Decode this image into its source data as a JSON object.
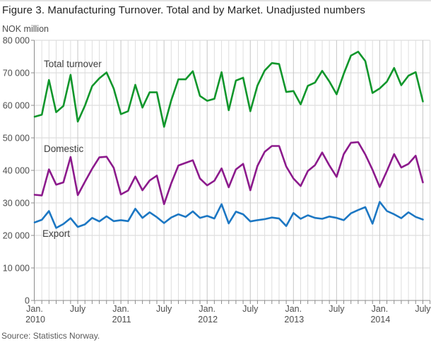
{
  "header": {
    "title": "Figure 3. Manufacturing Turnover. Total and by Market. Unadjusted numbers"
  },
  "footer": {
    "source": "Source: Statistics Norway."
  },
  "chart_data": {
    "type": "line",
    "title": "Figure 3. Manufacturing Turnover. Total and by Market. Unadjusted numbers",
    "ylabel": "NOK million",
    "xlabel": "",
    "ylim": [
      0,
      80000
    ],
    "ytick_step": 10000,
    "grid": true,
    "legend_position": "inline-labels",
    "x": [
      "2010-01",
      "2010-02",
      "2010-03",
      "2010-04",
      "2010-05",
      "2010-06",
      "2010-07",
      "2010-08",
      "2010-09",
      "2010-10",
      "2010-11",
      "2010-12",
      "2011-01",
      "2011-02",
      "2011-03",
      "2011-04",
      "2011-05",
      "2011-06",
      "2011-07",
      "2011-08",
      "2011-09",
      "2011-10",
      "2011-11",
      "2011-12",
      "2012-01",
      "2012-02",
      "2012-03",
      "2012-04",
      "2012-05",
      "2012-06",
      "2012-07",
      "2012-08",
      "2012-09",
      "2012-10",
      "2012-11",
      "2012-12",
      "2013-01",
      "2013-02",
      "2013-03",
      "2013-04",
      "2013-05",
      "2013-06",
      "2013-07",
      "2013-08",
      "2013-09",
      "2013-10",
      "2013-11",
      "2013-12",
      "2014-01",
      "2014-02",
      "2014-03",
      "2014-04",
      "2014-05",
      "2014-06",
      "2014-07"
    ],
    "x_ticks": [
      {
        "i": 0,
        "top": "Jan.",
        "bottom": "2010"
      },
      {
        "i": 6,
        "top": "July",
        "bottom": ""
      },
      {
        "i": 12,
        "top": "Jan.",
        "bottom": "2011"
      },
      {
        "i": 18,
        "top": "July",
        "bottom": ""
      },
      {
        "i": 24,
        "top": "Jan.",
        "bottom": "2012"
      },
      {
        "i": 30,
        "top": "July",
        "bottom": ""
      },
      {
        "i": 36,
        "top": "Jan.",
        "bottom": "2013"
      },
      {
        "i": 42,
        "top": "July",
        "bottom": ""
      },
      {
        "i": 48,
        "top": "Jan.",
        "bottom": "2014"
      },
      {
        "i": 54,
        "top": "July",
        "bottom": ""
      }
    ],
    "series": [
      {
        "name": "Total turnover",
        "color": "#10962b",
        "label_pos": {
          "x": 62,
          "y": 93
        },
        "values": [
          56500,
          57100,
          67800,
          57900,
          59800,
          69400,
          55000,
          59900,
          65900,
          68300,
          70100,
          65200,
          57300,
          58200,
          66300,
          59300,
          64000,
          64000,
          53400,
          61500,
          68000,
          68000,
          70500,
          62900,
          61400,
          62000,
          70200,
          58500,
          67600,
          68500,
          58200,
          66100,
          70700,
          73000,
          72700,
          64100,
          64400,
          60300,
          66000,
          67000,
          70600,
          67300,
          63400,
          69700,
          75300,
          76500,
          73600,
          63800,
          65200,
          67300,
          71500,
          66200,
          69100,
          70200,
          61200
        ]
      },
      {
        "name": "Domestic",
        "color": "#8c1a8c",
        "label_pos": {
          "x": 62,
          "y": 213
        },
        "values": [
          32500,
          32300,
          40300,
          35600,
          36300,
          44100,
          32400,
          36500,
          40500,
          44000,
          44200,
          40800,
          32600,
          33800,
          38100,
          33900,
          36900,
          38400,
          29600,
          36000,
          41500,
          42300,
          43100,
          37500,
          35400,
          36800,
          40600,
          34800,
          40300,
          42000,
          33900,
          41400,
          45700,
          47500,
          47500,
          41200,
          37500,
          35200,
          39800,
          41600,
          45500,
          41500,
          38000,
          45000,
          48500,
          48700,
          44900,
          40200,
          34900,
          39800,
          45000,
          40900,
          42000,
          44500,
          36300
        ]
      },
      {
        "name": "Export",
        "color": "#1c77c3",
        "label_pos": {
          "x": 60,
          "y": 333
        },
        "values": [
          24000,
          24800,
          27500,
          22300,
          23500,
          25300,
          22600,
          23400,
          25400,
          24300,
          25900,
          24400,
          24700,
          24400,
          28200,
          25400,
          27100,
          25600,
          23800,
          25500,
          26500,
          25700,
          27400,
          25400,
          26000,
          25200,
          29600,
          23700,
          27300,
          26500,
          24300,
          24700,
          25000,
          25500,
          25200,
          22900,
          26900,
          25100,
          26200,
          25400,
          25100,
          25800,
          25400,
          24700,
          26800,
          27800,
          28700,
          23600,
          30300,
          27500,
          26500,
          25300,
          27100,
          25700,
          24900
        ]
      }
    ],
    "colors": {
      "grid_minor": "#dedede",
      "grid_major": "#c6c6c6",
      "grid_horizontal": "#d6d6d6",
      "axis": "#8c8c8c"
    }
  }
}
